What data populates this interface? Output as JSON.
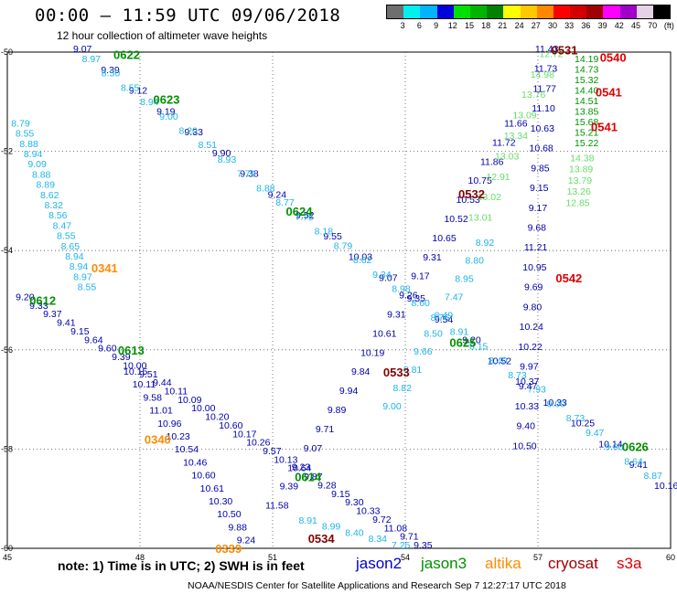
{
  "header": {
    "title": "00:00 – 11:59 UTC 09/06/2018",
    "subtitle": "12 hour collection of altimeter wave heights"
  },
  "legend": {
    "swatch_colors": [
      "#6e6e6e",
      "#00f0f0",
      "#00b4ff",
      "#0000dd",
      "#00e000",
      "#00b400",
      "#008200",
      "#ffff00",
      "#ffc800",
      "#ff8800",
      "#ff0000",
      "#d20000",
      "#a00000",
      "#ff00ff",
      "#a000c8",
      "#e6d2e6",
      "#000000"
    ],
    "labels": [
      "3",
      "6",
      "9",
      "12",
      "15",
      "18",
      "21",
      "24",
      "27",
      "30",
      "33",
      "36",
      "39",
      "42",
      "45",
      "70",
      "(ft)"
    ]
  },
  "map": {
    "lon_ticks": [
      "45",
      "48",
      "51",
      "54",
      "57",
      "60"
    ],
    "lat_ticks": [
      "-50",
      "-52",
      "-54",
      "-56",
      "-58",
      "-60"
    ],
    "colors": {
      "jason2": "#0000aa",
      "jason3": "#009000",
      "altika": "#ff8c00",
      "cryosat": "#800000",
      "s3a": "#dd0000",
      "light_blue": "#1eb4e6",
      "light_green": "#66dd66"
    },
    "time_labels": [
      {
        "text": "0622",
        "lon": 47.7,
        "lat": -50.05,
        "color": "jason3"
      },
      {
        "text": "0623",
        "lon": 48.6,
        "lat": -50.95,
        "color": "jason3"
      },
      {
        "text": "0624",
        "lon": 51.6,
        "lat": -53.2,
        "color": "jason3"
      },
      {
        "text": "0625",
        "lon": 55.3,
        "lat": -55.85,
        "color": "jason3"
      },
      {
        "text": "0612",
        "lon": 45.8,
        "lat": -55.0,
        "color": "jason3"
      },
      {
        "text": "0613",
        "lon": 47.8,
        "lat": -56.0,
        "color": "jason3"
      },
      {
        "text": "0614",
        "lon": 51.8,
        "lat": -58.55,
        "color": "jason3"
      },
      {
        "text": "0626",
        "lon": 59.2,
        "lat": -57.95,
        "color": "jason3"
      },
      {
        "text": "0341",
        "lon": 47.2,
        "lat": -54.35,
        "color": "altika"
      },
      {
        "text": "0340",
        "lon": 48.4,
        "lat": -57.8,
        "color": "altika"
      },
      {
        "text": "0339",
        "lon": 50.0,
        "lat": -60.0,
        "color": "altika"
      },
      {
        "text": "0531",
        "lon": 57.6,
        "lat": -49.95,
        "color": "cryosat"
      },
      {
        "text": "0532",
        "lon": 55.5,
        "lat": -52.85,
        "color": "cryosat"
      },
      {
        "text": "0533",
        "lon": 53.8,
        "lat": -56.45,
        "color": "cryosat"
      },
      {
        "text": "0534",
        "lon": 52.1,
        "lat": -59.8,
        "color": "cryosat"
      },
      {
        "text": "0540",
        "lon": 58.7,
        "lat": -50.1,
        "color": "s3a"
      },
      {
        "text": "0541",
        "lon": 58.6,
        "lat": -50.8,
        "color": "s3a"
      },
      {
        "text": "0541",
        "lon": 58.5,
        "lat": -51.5,
        "color": "s3a"
      },
      {
        "text": "0542",
        "lon": 57.7,
        "lat": -54.55,
        "color": "s3a"
      }
    ],
    "tracks": [
      {
        "color": "jason2",
        "start": [
          46.7,
          -50.0
        ],
        "end": [
          59.9,
          -58.8
        ],
        "values": [
          "9.07",
          "9.39",
          "9.12",
          "9.19",
          "9.33",
          "9.90",
          "9.38",
          "9.24",
          "9.52",
          "9.55",
          "10.03",
          "9.07",
          "9.35",
          "9.54",
          "9.20",
          "10.52",
          "10.37",
          "10.33",
          "10.25",
          "10.14",
          "9.41",
          "10.16"
        ]
      },
      {
        "color": "light_blue",
        "start": [
          46.9,
          -50.2
        ],
        "end": [
          59.6,
          -58.6
        ],
        "values": [
          "8.97",
          "8.50",
          "8.55",
          "8.94",
          "9.00",
          "8.20",
          "8.51",
          "8.93",
          "7.79",
          "8.88",
          "8.77",
          "7.75",
          "8.18",
          "8.79",
          "8.62",
          "9.34",
          "8.98",
          "8.60",
          "8.76",
          "8.91",
          "8.15",
          "8.40",
          "8.73",
          "7.93",
          "9.00",
          "8.73",
          "9.47",
          "9.00",
          "8.64",
          "8.87"
        ]
      },
      {
        "color": "light_blue",
        "start": [
          45.3,
          -51.5
        ],
        "end": [
          46.8,
          -54.8
        ],
        "values": [
          "8.79",
          "8.55",
          "8.88",
          "8.94",
          "9.09",
          "8.88",
          "8.89",
          "8.62",
          "8.32",
          "8.56",
          "8.47",
          "8.55",
          "8.65",
          "8.94",
          "8.94",
          "8.97",
          "8.55"
        ]
      },
      {
        "color": "jason2",
        "start": [
          45.4,
          -55.0
        ],
        "end": [
          54.4,
          -60.0
        ],
        "values": [
          "9.20",
          "9.33",
          "9.37",
          "9.41",
          "9.15",
          "9.64",
          "9.60",
          "9.39",
          "10.00",
          "9.51",
          "9.44",
          "10.11",
          "10.09",
          "10.00",
          "10.20",
          "10.60",
          "10.17",
          "10.26",
          "9.57",
          "10.13",
          "10.64",
          "9.87",
          "9.28",
          "9.15",
          "9.30",
          "10.33",
          "9.72",
          "11.08",
          "9.71",
          "9.35"
        ]
      },
      {
        "color": "jason2",
        "start": [
          47.9,
          -56.5
        ],
        "end": [
          50.4,
          -59.9
        ],
        "values": [
          "10.15",
          "10.11",
          "9.58",
          "11.01",
          "10.96",
          "10.23",
          "10.54",
          "10.46",
          "10.60",
          "10.61",
          "10.30",
          "10.50",
          "9.88",
          "9.24"
        ]
      },
      {
        "color": "light_blue",
        "start": [
          51.8,
          -59.5
        ],
        "end": [
          53.9,
          -60.0
        ],
        "values": [
          "8.91",
          "8.99",
          "8.40",
          "8.34",
          "7.25"
        ]
      },
      {
        "color": "jason2",
        "start": [
          51.1,
          -59.2
        ],
        "end": [
          56.5,
          -51.5
        ],
        "values": [
          "11.58",
          "9.39",
          "9.23",
          "9.07",
          "9.71",
          "9.89",
          "9.94",
          "9.84",
          "10.19",
          "10.61",
          "9.31",
          "9.26",
          "9.17",
          "9.31",
          "10.65",
          "10.52",
          "10.53",
          "10.75",
          "11.86",
          "11.72",
          "11.66"
        ]
      },
      {
        "color": "light_blue",
        "start": [
          53.7,
          -57.2
        ],
        "end": [
          55.8,
          -53.9
        ],
        "values": [
          "9.00",
          "8.82",
          "8.81",
          "9.66",
          "8.50",
          "8.49",
          "7.47",
          "8.95",
          "8.80",
          "8.92"
        ]
      },
      {
        "color": "light_green",
        "start": [
          55.7,
          -53.4
        ],
        "end": [
          57.3,
          -50.1
        ],
        "values": [
          "13.01",
          "13.02",
          "12.91",
          "13.03",
          "13.34",
          "13.09",
          "13.76",
          "14.98",
          "12.72"
        ]
      },
      {
        "color": "jason2",
        "start": [
          57.2,
          -50.0
        ],
        "end": [
          56.7,
          -58.0
        ],
        "values": [
          "11.43",
          "11.73",
          "11.77",
          "11.10",
          "10.63",
          "10.68",
          "9.85",
          "9.15",
          "9.17",
          "9.68",
          "11.21",
          "10.95",
          "9.69",
          "9.80",
          "10.24",
          "10.22",
          "9.97",
          "9.47",
          "10.33",
          "9.40",
          "10.50"
        ]
      },
      {
        "color": "jason3",
        "start": [
          58.1,
          -50.2
        ],
        "end": [
          58.1,
          -51.9
        ],
        "values": [
          "14.19",
          "14.73",
          "15.32",
          "14.40",
          "14.51",
          "13.85",
          "15.68",
          "15.21",
          "15.22"
        ]
      },
      {
        "color": "light_green",
        "start": [
          58.0,
          -52.2
        ],
        "end": [
          57.9,
          -53.1
        ],
        "values": [
          "14.38",
          "13.89",
          "13.79",
          "13.26",
          "12.85"
        ]
      }
    ]
  },
  "footer": {
    "note": "note: 1) Time is in UTC; 2) SWH is in feet",
    "missions": [
      {
        "name": "jason2",
        "color": "#0000cc"
      },
      {
        "name": "jason3",
        "color": "#009000"
      },
      {
        "name": "altika",
        "color": "#ff8c00"
      },
      {
        "name": "cryosat",
        "color": "#a00000"
      },
      {
        "name": "s3a",
        "color": "#dd0000"
      }
    ],
    "credit": "NOAA/NESDIS Center for Satellite Applications and Research    Sep  7 12:27:17 UTC 2018"
  }
}
